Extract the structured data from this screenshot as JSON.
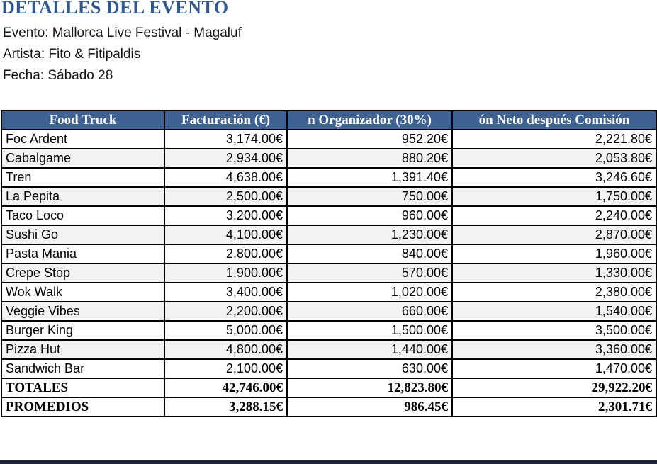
{
  "page": {
    "title": "DETALLES DEL EVENTO",
    "info_lines": {
      "evento": "Evento: Mallorca Live Festival - Magaluf",
      "artista": "Artista: Fito & Fitipaldis",
      "fecha": "Fecha: Sábado 28"
    }
  },
  "colors": {
    "title_blue": "#315A8C",
    "header_bg": "#3E6294",
    "header_text": "#FFFFFF",
    "stripe_gray": "#F2F2F2",
    "border": "#000000",
    "bottom_bar_dark": "#1A2333"
  },
  "table": {
    "headers": [
      "Food Truck",
      "Facturación (€)",
      "n Organizador (30%)",
      "ón Neto después Comisión"
    ],
    "rows": [
      [
        "Foc Ardent",
        "3,174.00€",
        "952.20€",
        "2,221.80€"
      ],
      [
        "Cabalgame",
        "2,934.00€",
        "880.20€",
        "2,053.80€"
      ],
      [
        "Tren",
        "4,638.00€",
        "1,391.40€",
        "3,246.60€"
      ],
      [
        "La Pepita",
        "2,500.00€",
        "750.00€",
        "1,750.00€"
      ],
      [
        "Taco Loco",
        "3,200.00€",
        "960.00€",
        "2,240.00€"
      ],
      [
        "Sushi Go",
        "4,100.00€",
        "1,230.00€",
        "2,870.00€"
      ],
      [
        "Pasta Mania",
        "2,800.00€",
        "840.00€",
        "1,960.00€"
      ],
      [
        "Crepe Stop",
        "1,900.00€",
        "570.00€",
        "1,330.00€"
      ],
      [
        "Wok Walk",
        "3,400.00€",
        "1,020.00€",
        "2,380.00€"
      ],
      [
        "Veggie Vibes",
        "2,200.00€",
        "660.00€",
        "1,540.00€"
      ],
      [
        "Burger King",
        "5,000.00€",
        "1,500.00€",
        "3,500.00€"
      ],
      [
        "Pizza Hut",
        "4,800.00€",
        "1,440.00€",
        "3,360.00€"
      ],
      [
        "Sandwich Bar",
        "2,100.00€",
        "630.00€",
        "1,470.00€"
      ]
    ],
    "totals_row": [
      "TOTALES",
      "42,746.00€",
      "12,823.80€",
      "29,922.20€"
    ],
    "averages_row": [
      "PROMEDIOS",
      "3,288.15€",
      "986.45€",
      "2,301.71€"
    ]
  }
}
